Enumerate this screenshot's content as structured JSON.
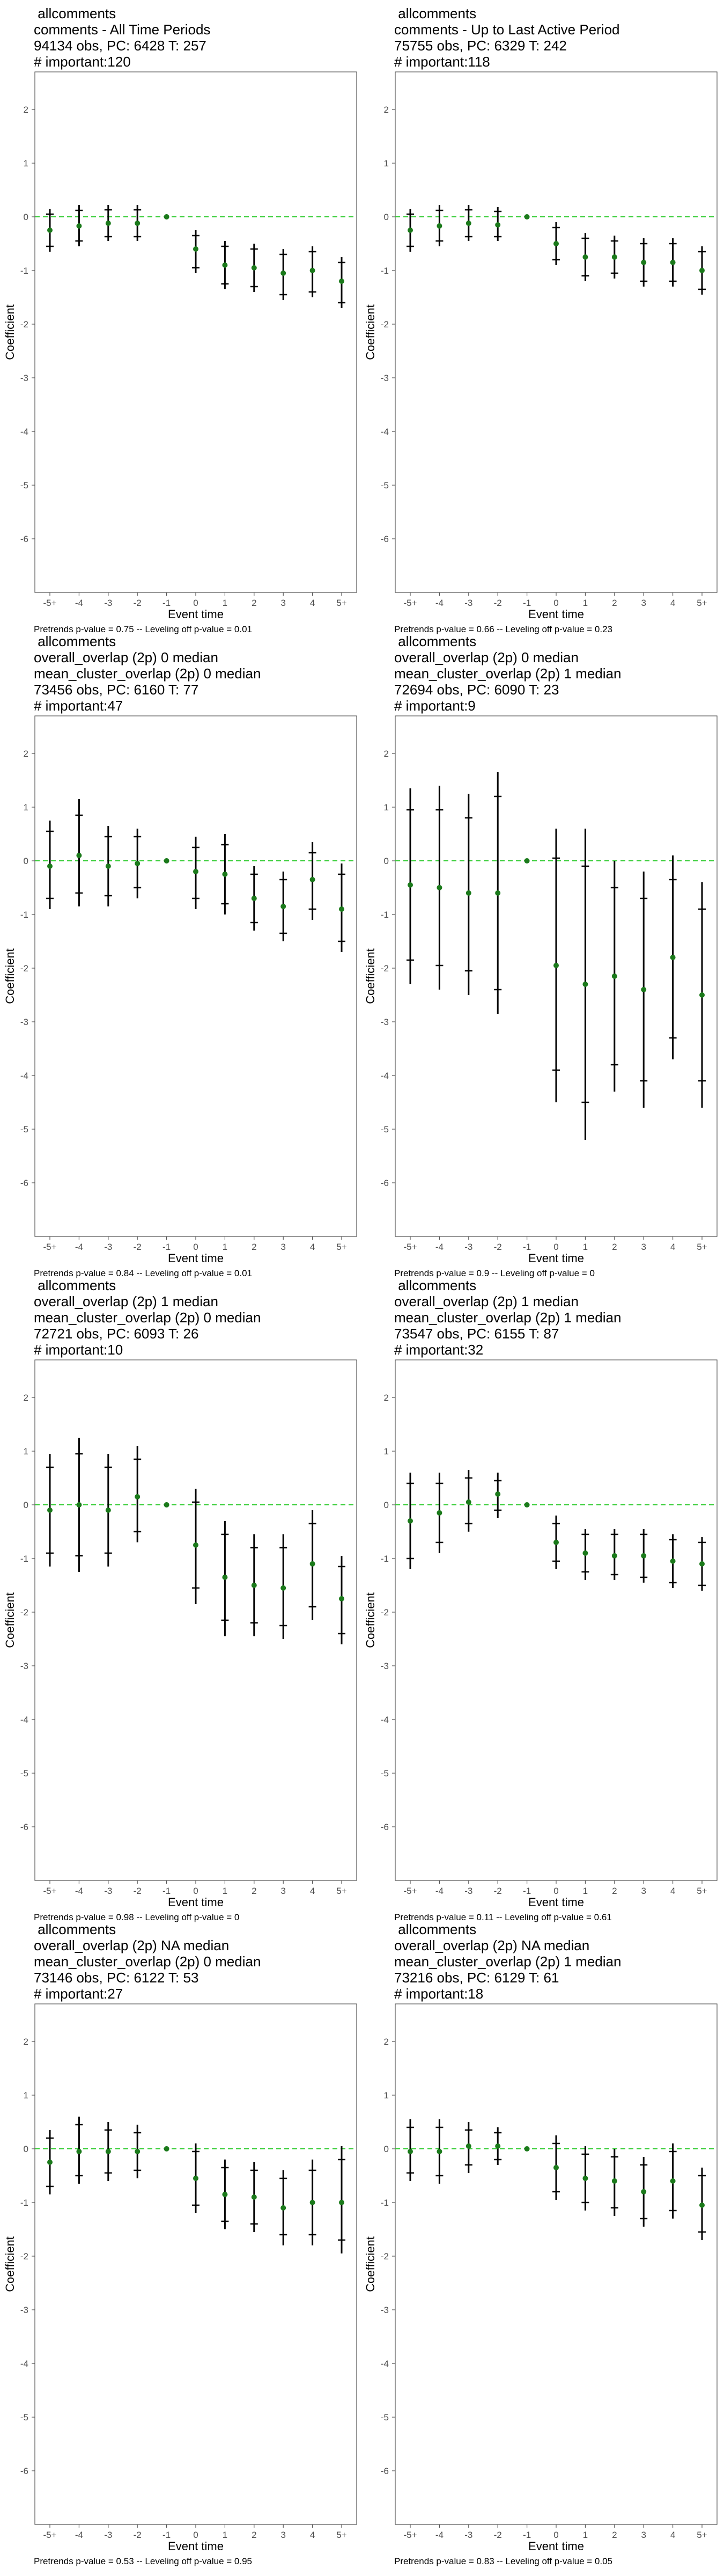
{
  "common": {
    "xlabel": "Event time",
    "ylabel": "Coefficient"
  },
  "chart_data": [
    {
      "type": "errorbar",
      "title_lines": [
        " allcomments",
        "comments - All Time Periods",
        "94134 obs, PC: 6428 T: 257",
        "# important:120"
      ],
      "footnote": "Pretrends p-value = 0.75 -- Leveling off p-value = 0.01",
      "xlabel": "Event time",
      "ylabel": "Coefficient",
      "categories": [
        "-5+",
        "-4",
        "-3",
        "-2",
        "-1",
        "0",
        "1",
        "2",
        "3",
        "4",
        "5+"
      ],
      "ylim": [
        -7,
        2.7
      ],
      "yticks": [
        2,
        1,
        0,
        -1,
        -2,
        -3,
        -4,
        -5,
        -6
      ],
      "points": [
        {
          "y": -0.25,
          "lo": -0.65,
          "hi": 0.15,
          "ilo": -0.55,
          "ihi": 0.05
        },
        {
          "y": -0.17,
          "lo": -0.55,
          "hi": 0.22,
          "ilo": -0.45,
          "ihi": 0.12
        },
        {
          "y": -0.12,
          "lo": -0.45,
          "hi": 0.22,
          "ilo": -0.37,
          "ihi": 0.13
        },
        {
          "y": -0.12,
          "lo": -0.45,
          "hi": 0.22,
          "ilo": -0.37,
          "ihi": 0.13
        },
        {
          "y": 0,
          "lo": null,
          "hi": null,
          "ilo": null,
          "ihi": null
        },
        {
          "y": -0.6,
          "lo": -1.05,
          "hi": -0.25,
          "ilo": -0.95,
          "ihi": -0.35
        },
        {
          "y": -0.9,
          "lo": -1.35,
          "hi": -0.45,
          "ilo": -1.25,
          "ihi": -0.55
        },
        {
          "y": -0.95,
          "lo": -1.4,
          "hi": -0.5,
          "ilo": -1.3,
          "ihi": -0.6
        },
        {
          "y": -1.05,
          "lo": -1.55,
          "hi": -0.6,
          "ilo": -1.45,
          "ihi": -0.7
        },
        {
          "y": -1.0,
          "lo": -1.5,
          "hi": -0.55,
          "ilo": -1.4,
          "ihi": -0.65
        },
        {
          "y": -1.2,
          "lo": -1.7,
          "hi": -0.75,
          "ilo": -1.6,
          "ihi": -0.85
        }
      ]
    },
    {
      "type": "errorbar",
      "title_lines": [
        " allcomments",
        "comments - Up to Last Active Period",
        "75755 obs, PC: 6329 T: 242",
        "# important:118"
      ],
      "footnote": "Pretrends p-value = 0.66 -- Leveling off p-value = 0.23",
      "xlabel": "Event time",
      "ylabel": "Coefficient",
      "categories": [
        "-5+",
        "-4",
        "-3",
        "-2",
        "-1",
        "0",
        "1",
        "2",
        "3",
        "4",
        "5+"
      ],
      "ylim": [
        -7,
        2.7
      ],
      "yticks": [
        2,
        1,
        0,
        -1,
        -2,
        -3,
        -4,
        -5,
        -6
      ],
      "points": [
        {
          "y": -0.25,
          "lo": -0.65,
          "hi": 0.15,
          "ilo": -0.55,
          "ihi": 0.05
        },
        {
          "y": -0.17,
          "lo": -0.55,
          "hi": 0.22,
          "ilo": -0.45,
          "ihi": 0.12
        },
        {
          "y": -0.12,
          "lo": -0.45,
          "hi": 0.22,
          "ilo": -0.37,
          "ihi": 0.13
        },
        {
          "y": -0.15,
          "lo": -0.45,
          "hi": 0.18,
          "ilo": -0.37,
          "ihi": 0.1
        },
        {
          "y": 0,
          "lo": null,
          "hi": null,
          "ilo": null,
          "ihi": null
        },
        {
          "y": -0.5,
          "lo": -0.9,
          "hi": -0.1,
          "ilo": -0.8,
          "ihi": -0.2
        },
        {
          "y": -0.75,
          "lo": -1.2,
          "hi": -0.3,
          "ilo": -1.1,
          "ihi": -0.4
        },
        {
          "y": -0.75,
          "lo": -1.15,
          "hi": -0.35,
          "ilo": -1.05,
          "ihi": -0.45
        },
        {
          "y": -0.85,
          "lo": -1.3,
          "hi": -0.4,
          "ilo": -1.2,
          "ihi": -0.5
        },
        {
          "y": -0.85,
          "lo": -1.3,
          "hi": -0.4,
          "ilo": -1.2,
          "ihi": -0.5
        },
        {
          "y": -1.0,
          "lo": -1.45,
          "hi": -0.55,
          "ilo": -1.35,
          "ihi": -0.65
        }
      ]
    },
    {
      "type": "errorbar",
      "title_lines": [
        " allcomments",
        "overall_overlap (2p) 0 median",
        "mean_cluster_overlap (2p) 0 median",
        "73456 obs, PC: 6160 T: 77",
        "# important:47"
      ],
      "footnote": "Pretrends p-value = 0.84 -- Leveling off p-value = 0.01",
      "xlabel": "Event time",
      "ylabel": "Coefficient",
      "categories": [
        "-5+",
        "-4",
        "-3",
        "-2",
        "-1",
        "0",
        "1",
        "2",
        "3",
        "4",
        "5+"
      ],
      "ylim": [
        -7,
        2.7
      ],
      "yticks": [
        2,
        1,
        0,
        -1,
        -2,
        -3,
        -4,
        -5,
        -6
      ],
      "points": [
        {
          "y": -0.1,
          "lo": -0.9,
          "hi": 0.75,
          "ilo": -0.7,
          "ihi": 0.55
        },
        {
          "y": 0.1,
          "lo": -0.85,
          "hi": 1.15,
          "ilo": -0.6,
          "ihi": 0.85
        },
        {
          "y": -0.1,
          "lo": -0.85,
          "hi": 0.65,
          "ilo": -0.65,
          "ihi": 0.45
        },
        {
          "y": -0.05,
          "lo": -0.7,
          "hi": 0.6,
          "ilo": -0.5,
          "ihi": 0.45
        },
        {
          "y": 0,
          "lo": null,
          "hi": null,
          "ilo": null,
          "ihi": null
        },
        {
          "y": -0.2,
          "lo": -0.9,
          "hi": 0.45,
          "ilo": -0.7,
          "ihi": 0.25
        },
        {
          "y": -0.25,
          "lo": -1.0,
          "hi": 0.5,
          "ilo": -0.8,
          "ihi": 0.3
        },
        {
          "y": -0.7,
          "lo": -1.3,
          "hi": -0.1,
          "ilo": -1.15,
          "ihi": -0.25
        },
        {
          "y": -0.85,
          "lo": -1.5,
          "hi": -0.2,
          "ilo": -1.35,
          "ihi": -0.35
        },
        {
          "y": -0.35,
          "lo": -1.1,
          "hi": 0.35,
          "ilo": -0.9,
          "ihi": 0.15
        },
        {
          "y": -0.9,
          "lo": -1.7,
          "hi": -0.05,
          "ilo": -1.5,
          "ihi": -0.25
        }
      ]
    },
    {
      "type": "errorbar",
      "title_lines": [
        " allcomments",
        "overall_overlap (2p) 0 median",
        "mean_cluster_overlap (2p) 1 median",
        "72694 obs, PC: 6090 T: 23",
        "# important:9"
      ],
      "footnote": "Pretrends p-value = 0.9 -- Leveling off p-value = 0",
      "xlabel": "Event time",
      "ylabel": "Coefficient",
      "categories": [
        "-5+",
        "-4",
        "-3",
        "-2",
        "-1",
        "0",
        "1",
        "2",
        "3",
        "4",
        "5+"
      ],
      "ylim": [
        -7,
        2.7
      ],
      "yticks": [
        2,
        1,
        0,
        -1,
        -2,
        -3,
        -4,
        -5,
        -6
      ],
      "points": [
        {
          "y": -0.45,
          "lo": -2.3,
          "hi": 1.35,
          "ilo": -1.85,
          "ihi": 0.95
        },
        {
          "y": -0.5,
          "lo": -2.4,
          "hi": 1.4,
          "ilo": -1.95,
          "ihi": 0.95
        },
        {
          "y": -0.6,
          "lo": -2.5,
          "hi": 1.25,
          "ilo": -2.05,
          "ihi": 0.8
        },
        {
          "y": -0.6,
          "lo": -2.85,
          "hi": 1.65,
          "ilo": -2.4,
          "ihi": 1.2
        },
        {
          "y": 0,
          "lo": null,
          "hi": null,
          "ilo": null,
          "ihi": null
        },
        {
          "y": -1.95,
          "lo": -4.5,
          "hi": 0.6,
          "ilo": -3.9,
          "ihi": 0.05
        },
        {
          "y": -2.3,
          "lo": -5.2,
          "hi": 0.6,
          "ilo": -4.5,
          "ihi": -0.1
        },
        {
          "y": -2.15,
          "lo": -4.3,
          "hi": 0.0,
          "ilo": -3.8,
          "ihi": -0.5
        },
        {
          "y": -2.4,
          "lo": -4.6,
          "hi": -0.2,
          "ilo": -4.1,
          "ihi": -0.7
        },
        {
          "y": -1.8,
          "lo": -3.7,
          "hi": 0.1,
          "ilo": -3.3,
          "ihi": -0.35
        },
        {
          "y": -2.5,
          "lo": -4.6,
          "hi": -0.4,
          "ilo": -4.1,
          "ihi": -0.9
        }
      ]
    },
    {
      "type": "errorbar",
      "title_lines": [
        " allcomments",
        "overall_overlap (2p) 1 median",
        "mean_cluster_overlap (2p) 0 median",
        "72721 obs, PC: 6093 T: 26",
        "# important:10"
      ],
      "footnote": "Pretrends p-value = 0.98 -- Leveling off p-value = 0",
      "xlabel": "Event time",
      "ylabel": "Coefficient",
      "categories": [
        "-5+",
        "-4",
        "-3",
        "-2",
        "-1",
        "0",
        "1",
        "2",
        "3",
        "4",
        "5+"
      ],
      "ylim": [
        -7,
        2.7
      ],
      "yticks": [
        2,
        1,
        0,
        -1,
        -2,
        -3,
        -4,
        -5,
        -6
      ],
      "points": [
        {
          "y": -0.1,
          "lo": -1.15,
          "hi": 0.95,
          "ilo": -0.9,
          "ihi": 0.7
        },
        {
          "y": 0.0,
          "lo": -1.25,
          "hi": 1.25,
          "ilo": -0.95,
          "ihi": 0.95
        },
        {
          "y": -0.1,
          "lo": -1.15,
          "hi": 0.95,
          "ilo": -0.9,
          "ihi": 0.7
        },
        {
          "y": 0.15,
          "lo": -0.7,
          "hi": 1.1,
          "ilo": -0.5,
          "ihi": 0.85
        },
        {
          "y": 0,
          "lo": null,
          "hi": null,
          "ilo": null,
          "ihi": null
        },
        {
          "y": -0.75,
          "lo": -1.85,
          "hi": 0.3,
          "ilo": -1.55,
          "ihi": 0.05
        },
        {
          "y": -1.35,
          "lo": -2.45,
          "hi": -0.3,
          "ilo": -2.15,
          "ihi": -0.55
        },
        {
          "y": -1.5,
          "lo": -2.45,
          "hi": -0.55,
          "ilo": -2.2,
          "ihi": -0.8
        },
        {
          "y": -1.55,
          "lo": -2.5,
          "hi": -0.55,
          "ilo": -2.25,
          "ihi": -0.8
        },
        {
          "y": -1.1,
          "lo": -2.15,
          "hi": -0.1,
          "ilo": -1.9,
          "ihi": -0.35
        },
        {
          "y": -1.75,
          "lo": -2.6,
          "hi": -0.95,
          "ilo": -2.4,
          "ihi": -1.15
        }
      ]
    },
    {
      "type": "errorbar",
      "title_lines": [
        " allcomments",
        "overall_overlap (2p) 1 median",
        "mean_cluster_overlap (2p) 1 median",
        "73547 obs, PC: 6155 T: 87",
        "# important:32"
      ],
      "footnote": "Pretrends p-value = 0.11 -- Leveling off p-value = 0.61",
      "xlabel": "Event time",
      "ylabel": "Coefficient",
      "categories": [
        "-5+",
        "-4",
        "-3",
        "-2",
        "-1",
        "0",
        "1",
        "2",
        "3",
        "4",
        "5+"
      ],
      "ylim": [
        -7,
        2.7
      ],
      "yticks": [
        2,
        1,
        0,
        -1,
        -2,
        -3,
        -4,
        -5,
        -6
      ],
      "points": [
        {
          "y": -0.3,
          "lo": -1.2,
          "hi": 0.6,
          "ilo": -1.0,
          "ihi": 0.4
        },
        {
          "y": -0.15,
          "lo": -0.9,
          "hi": 0.6,
          "ilo": -0.7,
          "ihi": 0.4
        },
        {
          "y": 0.05,
          "lo": -0.5,
          "hi": 0.65,
          "ilo": -0.35,
          "ihi": 0.5
        },
        {
          "y": 0.2,
          "lo": -0.25,
          "hi": 0.6,
          "ilo": -0.1,
          "ihi": 0.45
        },
        {
          "y": 0,
          "lo": null,
          "hi": null,
          "ilo": null,
          "ihi": null
        },
        {
          "y": -0.7,
          "lo": -1.2,
          "hi": -0.2,
          "ilo": -1.05,
          "ihi": -0.35
        },
        {
          "y": -0.9,
          "lo": -1.4,
          "hi": -0.45,
          "ilo": -1.25,
          "ihi": -0.55
        },
        {
          "y": -0.95,
          "lo": -1.4,
          "hi": -0.45,
          "ilo": -1.3,
          "ihi": -0.55
        },
        {
          "y": -0.95,
          "lo": -1.45,
          "hi": -0.45,
          "ilo": -1.35,
          "ihi": -0.55
        },
        {
          "y": -1.05,
          "lo": -1.55,
          "hi": -0.55,
          "ilo": -1.45,
          "ihi": -0.65
        },
        {
          "y": -1.1,
          "lo": -1.6,
          "hi": -0.6,
          "ilo": -1.5,
          "ihi": -0.7
        }
      ]
    },
    {
      "type": "errorbar",
      "title_lines": [
        " allcomments",
        "overall_overlap (2p) NA median",
        "mean_cluster_overlap (2p) 0 median",
        "73146 obs, PC: 6122 T: 53",
        "# important:27"
      ],
      "footnote": "Pretrends p-value = 0.53 -- Leveling off p-value = 0.95",
      "xlabel": "Event time",
      "ylabel": "Coefficient",
      "categories": [
        "-5+",
        "-4",
        "-3",
        "-2",
        "-1",
        "0",
        "1",
        "2",
        "3",
        "4",
        "5+"
      ],
      "ylim": [
        -7,
        2.7
      ],
      "yticks": [
        2,
        1,
        0,
        -1,
        -2,
        -3,
        -4,
        -5,
        -6
      ],
      "points": [
        {
          "y": -0.25,
          "lo": -0.85,
          "hi": 0.35,
          "ilo": -0.7,
          "ihi": 0.2
        },
        {
          "y": -0.05,
          "lo": -0.65,
          "hi": 0.6,
          "ilo": -0.5,
          "ihi": 0.45
        },
        {
          "y": -0.05,
          "lo": -0.6,
          "hi": 0.5,
          "ilo": -0.45,
          "ihi": 0.35
        },
        {
          "y": -0.05,
          "lo": -0.55,
          "hi": 0.45,
          "ilo": -0.4,
          "ihi": 0.3
        },
        {
          "y": 0,
          "lo": null,
          "hi": null,
          "ilo": null,
          "ihi": null
        },
        {
          "y": -0.55,
          "lo": -1.2,
          "hi": 0.1,
          "ilo": -1.05,
          "ihi": -0.05
        },
        {
          "y": -0.85,
          "lo": -1.5,
          "hi": -0.2,
          "ilo": -1.35,
          "ihi": -0.35
        },
        {
          "y": -0.9,
          "lo": -1.55,
          "hi": -0.25,
          "ilo": -1.4,
          "ihi": -0.4
        },
        {
          "y": -1.1,
          "lo": -1.8,
          "hi": -0.4,
          "ilo": -1.6,
          "ihi": -0.55
        },
        {
          "y": -1.0,
          "lo": -1.8,
          "hi": -0.2,
          "ilo": -1.6,
          "ihi": -0.4
        },
        {
          "y": -1.0,
          "lo": -1.95,
          "hi": 0.05,
          "ilo": -1.7,
          "ihi": -0.2
        }
      ]
    },
    {
      "type": "errorbar",
      "title_lines": [
        " allcomments",
        "overall_overlap (2p) NA median",
        "mean_cluster_overlap (2p) 1 median",
        "73216 obs, PC: 6129 T: 61",
        "# important:18"
      ],
      "footnote": "Pretrends p-value = 0.83 -- Leveling off p-value = 0.05",
      "xlabel": "Event time",
      "ylabel": "Coefficient",
      "categories": [
        "-5+",
        "-4",
        "-3",
        "-2",
        "-1",
        "0",
        "1",
        "2",
        "3",
        "4",
        "5+"
      ],
      "ylim": [
        -7,
        2.7
      ],
      "yticks": [
        2,
        1,
        0,
        -1,
        -2,
        -3,
        -4,
        -5,
        -6
      ],
      "points": [
        {
          "y": -0.05,
          "lo": -0.6,
          "hi": 0.55,
          "ilo": -0.45,
          "ihi": 0.4
        },
        {
          "y": -0.05,
          "lo": -0.65,
          "hi": 0.55,
          "ilo": -0.5,
          "ihi": 0.4
        },
        {
          "y": 0.05,
          "lo": -0.45,
          "hi": 0.5,
          "ilo": -0.3,
          "ihi": 0.35
        },
        {
          "y": 0.05,
          "lo": -0.3,
          "hi": 0.4,
          "ilo": -0.2,
          "ihi": 0.3
        },
        {
          "y": 0,
          "lo": null,
          "hi": null,
          "ilo": null,
          "ihi": null
        },
        {
          "y": -0.35,
          "lo": -0.95,
          "hi": 0.25,
          "ilo": -0.8,
          "ihi": 0.1
        },
        {
          "y": -0.55,
          "lo": -1.15,
          "hi": 0.05,
          "ilo": -1.0,
          "ihi": -0.1
        },
        {
          "y": -0.6,
          "lo": -1.25,
          "hi": 0.0,
          "ilo": -1.1,
          "ihi": -0.15
        },
        {
          "y": -0.8,
          "lo": -1.45,
          "hi": -0.15,
          "ilo": -1.3,
          "ihi": -0.3
        },
        {
          "y": -0.6,
          "lo": -1.3,
          "hi": 0.1,
          "ilo": -1.15,
          "ihi": -0.05
        },
        {
          "y": -1.05,
          "lo": -1.7,
          "hi": -0.35,
          "ilo": -1.55,
          "ihi": -0.5
        }
      ]
    }
  ],
  "colors": {
    "point": "#1b7a1b",
    "zero_line": "#33cc33",
    "bar": "#000000",
    "axis": "#555555",
    "tick_text": "#4d4d4d"
  }
}
